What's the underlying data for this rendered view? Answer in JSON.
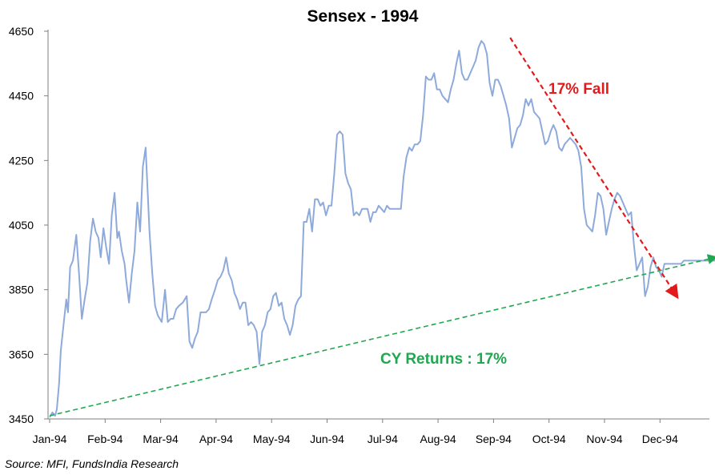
{
  "chart_data": {
    "type": "line",
    "title": "Sensex - 1994",
    "xlabel": "",
    "ylabel": "",
    "ylim": [
      3450,
      4650
    ],
    "yticks": [
      3450,
      3650,
      3850,
      4050,
      4250,
      4450,
      4650
    ],
    "xlim": [
      0,
      12.1
    ],
    "xticks": [
      {
        "v": 0,
        "label": "Jan-94"
      },
      {
        "v": 1,
        "label": "Feb-94"
      },
      {
        "v": 2,
        "label": "Mar-94"
      },
      {
        "v": 3,
        "label": "Apr-94"
      },
      {
        "v": 4,
        "label": "May-94"
      },
      {
        "v": 5,
        "label": "Jun-94"
      },
      {
        "v": 6,
        "label": "Jul-94"
      },
      {
        "v": 7,
        "label": "Aug-94"
      },
      {
        "v": 8,
        "label": "Sep-94"
      },
      {
        "v": 9,
        "label": "Oct-94"
      },
      {
        "v": 10,
        "label": "Nov-94"
      },
      {
        "v": 11,
        "label": "Dec-94"
      }
    ],
    "series": [
      {
        "color": "#8eaadb",
        "x": [
          0.0,
          0.05,
          0.1,
          0.13,
          0.17,
          0.2,
          0.25,
          0.3,
          0.33,
          0.37,
          0.42,
          0.48,
          0.53,
          0.58,
          0.63,
          0.68,
          0.73,
          0.78,
          0.83,
          0.88,
          0.92,
          0.97,
          1.02,
          1.07,
          1.12,
          1.17,
          1.22,
          1.25,
          1.3,
          1.35,
          1.38,
          1.43,
          1.48,
          1.53,
          1.58,
          1.63,
          1.68,
          1.73,
          1.8,
          1.85,
          1.9,
          1.95,
          2.02,
          2.08,
          2.13,
          2.18,
          2.23,
          2.28,
          2.33,
          2.4,
          2.47,
          2.52,
          2.57,
          2.62,
          2.67,
          2.72,
          2.77,
          2.82,
          2.87,
          2.92,
          2.98,
          3.03,
          3.08,
          3.13,
          3.18,
          3.23,
          3.28,
          3.33,
          3.38,
          3.43,
          3.48,
          3.53,
          3.58,
          3.63,
          3.68,
          3.73,
          3.78,
          3.83,
          3.88,
          3.93,
          3.98,
          4.03,
          4.08,
          4.13,
          4.18,
          4.23,
          4.28,
          4.33,
          4.38,
          4.43,
          4.48,
          4.53,
          4.58,
          4.63,
          4.68,
          4.73,
          4.78,
          4.83,
          4.88,
          4.93,
          4.98,
          5.03,
          5.08,
          5.13,
          5.18,
          5.23,
          5.28,
          5.33,
          5.38,
          5.43,
          5.48,
          5.53,
          5.58,
          5.63,
          5.68,
          5.73,
          5.78,
          5.83,
          5.88,
          5.93,
          5.98,
          6.03,
          6.08,
          6.13,
          6.18,
          6.23,
          6.28,
          6.33,
          6.38,
          6.43,
          6.48,
          6.53,
          6.58,
          6.63,
          6.68,
          6.73,
          6.78,
          6.83,
          6.88,
          6.93,
          6.98,
          7.03,
          7.08,
          7.13,
          7.18,
          7.23,
          7.28,
          7.33,
          7.38,
          7.43,
          7.48,
          7.53,
          7.58,
          7.63,
          7.68,
          7.73,
          7.78,
          7.83,
          7.88,
          7.93,
          7.98,
          8.03,
          8.08,
          8.13,
          8.18,
          8.23,
          8.28,
          8.33,
          8.38,
          8.43,
          8.48,
          8.53,
          8.58,
          8.63,
          8.68,
          8.73,
          8.78,
          8.83,
          8.88,
          8.93,
          8.98,
          9.03,
          9.08,
          9.13,
          9.18,
          9.23,
          9.28,
          9.33,
          9.38,
          9.43,
          9.48,
          9.53,
          9.58,
          9.63,
          9.68,
          9.73,
          9.78,
          9.83,
          9.88,
          9.93,
          9.98,
          10.03,
          10.08,
          10.13,
          10.18,
          10.23,
          10.28,
          10.33,
          10.38,
          10.43,
          10.48,
          10.53,
          10.58,
          10.63,
          10.68,
          10.73,
          10.78,
          10.83,
          10.88,
          10.93,
          10.98,
          11.03,
          11.08,
          11.13,
          11.18,
          11.23,
          11.28,
          11.33,
          11.38,
          11.43,
          11.48,
          11.53,
          11.58,
          11.63,
          11.68,
          11.73,
          11.8,
          11.9,
          12.0,
          12.1
        ],
        "y": [
          3455,
          3470,
          3460,
          3480,
          3560,
          3660,
          3740,
          3820,
          3780,
          3920,
          3940,
          4020,
          3900,
          3760,
          3820,
          3870,
          4000,
          4070,
          4030,
          4010,
          3950,
          4040,
          3980,
          3930,
          4080,
          4150,
          4010,
          4030,
          3970,
          3930,
          3880,
          3810,
          3900,
          3970,
          4120,
          4030,
          4230,
          4290,
          4030,
          3900,
          3800,
          3770,
          3750,
          3850,
          3750,
          3760,
          3760,
          3790,
          3800,
          3810,
          3830,
          3690,
          3670,
          3700,
          3720,
          3780,
          3780,
          3780,
          3790,
          3820,
          3850,
          3880,
          3890,
          3910,
          3950,
          3900,
          3880,
          3840,
          3820,
          3790,
          3810,
          3810,
          3740,
          3750,
          3740,
          3720,
          3620,
          3720,
          3740,
          3780,
          3790,
          3830,
          3840,
          3800,
          3810,
          3760,
          3740,
          3710,
          3740,
          3800,
          3820,
          3830,
          4060,
          4060,
          4100,
          4030,
          4130,
          4130,
          4110,
          4120,
          4080,
          4110,
          4110,
          4210,
          4330,
          4340,
          4330,
          4210,
          4180,
          4160,
          4080,
          4090,
          4080,
          4100,
          4100,
          4100,
          4060,
          4090,
          4090,
          4110,
          4100,
          4090,
          4110,
          4100,
          4100,
          4100,
          4100,
          4100,
          4200,
          4260,
          4290,
          4280,
          4300,
          4300,
          4310,
          4390,
          4510,
          4500,
          4500,
          4520,
          4470,
          4470,
          4450,
          4440,
          4430,
          4470,
          4500,
          4550,
          4590,
          4520,
          4500,
          4500,
          4520,
          4540,
          4560,
          4600,
          4620,
          4610,
          4580,
          4490,
          4450,
          4500,
          4500,
          4480,
          4450,
          4420,
          4380,
          4290,
          4320,
          4350,
          4360,
          4390,
          4440,
          4420,
          4440,
          4400,
          4390,
          4380,
          4340,
          4300,
          4310,
          4340,
          4360,
          4340,
          4290,
          4280,
          4300,
          4310,
          4320,
          4310,
          4300,
          4280,
          4230,
          4100,
          4050,
          4040,
          4030,
          4080,
          4150,
          4140,
          4100,
          4020,
          4060,
          4100,
          4130,
          4150,
          4140,
          4120,
          4100,
          4080,
          4090,
          3990,
          3910,
          3930,
          3950,
          3830,
          3860,
          3920,
          3950,
          3920,
          3910,
          3890,
          3930,
          3930,
          3930,
          3930,
          3930,
          3930,
          3930,
          3940,
          3940,
          3940,
          3940,
          3940,
          3940,
          3940,
          3940,
          3940,
          3940,
          3940
        ]
      }
    ],
    "annotations": [
      {
        "kind": "arrow",
        "color": "#e31a1c",
        "from": [
          8.3,
          4630
        ],
        "to": [
          11.3,
          3830
        ],
        "label": "17% Fall"
      },
      {
        "kind": "arrow",
        "color": "#1fa84f",
        "from": [
          0.0,
          3460
        ],
        "to": [
          12.0,
          3950
        ],
        "label": "CY Returns : 17%"
      }
    ],
    "grid": false,
    "legend": "none"
  },
  "footer": {
    "source": "Source: MFI, FundsIndia Research"
  }
}
